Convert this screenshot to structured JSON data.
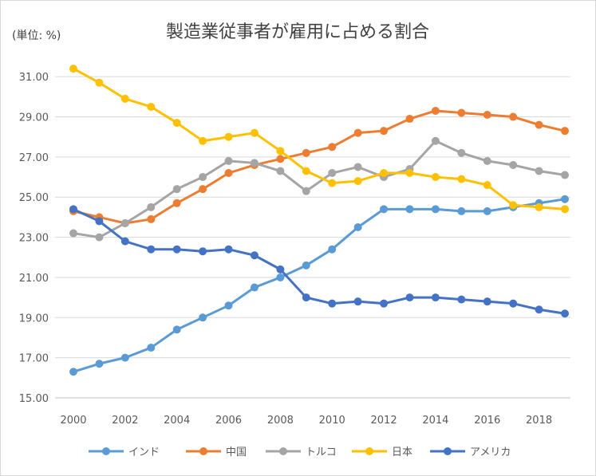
{
  "chart_data": {
    "type": "line",
    "title": "製造業従事者が雇用に占める割合",
    "unit_label": "(単位: %)",
    "x": [
      2000,
      2001,
      2002,
      2003,
      2004,
      2005,
      2006,
      2007,
      2008,
      2009,
      2010,
      2011,
      2012,
      2013,
      2014,
      2015,
      2016,
      2017,
      2018,
      2019
    ],
    "x_tick_labels": [
      "2000",
      "2002",
      "2004",
      "2006",
      "2008",
      "2010",
      "2012",
      "2014",
      "2016",
      "2018"
    ],
    "y_tick_labels": [
      "15.00",
      "17.00",
      "19.00",
      "21.00",
      "23.00",
      "25.00",
      "27.00",
      "29.00",
      "31.00"
    ],
    "ylim": [
      15,
      32
    ],
    "grid": true,
    "legend_position": "bottom",
    "series": [
      {
        "name": "インド",
        "color": "#5b9bd5",
        "values": [
          16.3,
          16.7,
          17.0,
          17.5,
          18.4,
          19.0,
          19.6,
          20.5,
          21.0,
          21.6,
          22.4,
          23.5,
          24.4,
          24.4,
          24.4,
          24.3,
          24.3,
          24.5,
          24.7,
          24.9
        ]
      },
      {
        "name": "中国",
        "color": "#ed7d31",
        "values": [
          24.3,
          24.0,
          23.7,
          23.9,
          24.7,
          25.4,
          26.2,
          26.6,
          26.9,
          27.2,
          27.5,
          28.2,
          28.3,
          28.9,
          29.3,
          29.2,
          29.1,
          29.0,
          28.6,
          28.3
        ]
      },
      {
        "name": "トルコ",
        "color": "#a5a5a5",
        "values": [
          23.2,
          23.0,
          23.7,
          24.5,
          25.4,
          26.0,
          26.8,
          26.7,
          26.3,
          25.3,
          26.2,
          26.5,
          26.0,
          26.4,
          27.8,
          27.2,
          26.8,
          26.6,
          26.3,
          26.1
        ]
      },
      {
        "name": "日本",
        "color": "#ffc000",
        "values": [
          31.4,
          30.7,
          29.9,
          29.5,
          28.7,
          27.8,
          28.0,
          28.2,
          27.3,
          26.3,
          25.7,
          25.8,
          26.2,
          26.2,
          26.0,
          25.9,
          25.6,
          24.6,
          24.5,
          24.4
        ]
      },
      {
        "name": "アメリカ",
        "color": "#4472c4",
        "values": [
          24.4,
          23.8,
          22.8,
          22.4,
          22.4,
          22.3,
          22.4,
          22.1,
          21.4,
          20.0,
          19.7,
          19.8,
          19.7,
          20.0,
          20.0,
          19.9,
          19.8,
          19.7,
          19.4,
          19.2
        ]
      }
    ]
  }
}
